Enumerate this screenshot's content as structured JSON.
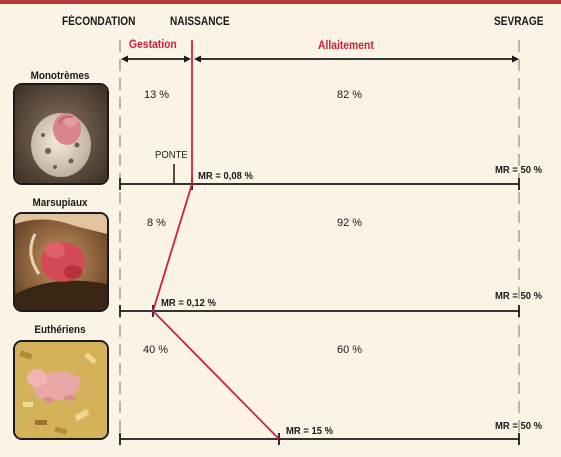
{
  "header": {
    "fecondation": "FÉCONDATION",
    "naissance": "NAISSANCE",
    "sevrage": "SEVRAGE"
  },
  "periods": {
    "gestation": "Gestation",
    "allaitement": "Allaitement"
  },
  "groups": [
    {
      "name": "Monotrèmes",
      "gestation_pct": "13 %",
      "allaitement_pct": "82 %",
      "mr_birth": "MR = 0,08 %",
      "mr_weaning": "MR = 50 %",
      "ponte_label": "PONTE",
      "photo_icon": "egg-hatchling-photo"
    },
    {
      "name": "Marsupiaux",
      "gestation_pct": "8 %",
      "allaitement_pct": "92 %",
      "mr_birth": "MR = 0,12 %",
      "mr_weaning": "MR = 50 %",
      "photo_icon": "pouch-joey-photo"
    },
    {
      "name": "Euthériens",
      "gestation_pct": "40 %",
      "allaitement_pct": "60 %",
      "mr_birth": "MR = 15 %",
      "mr_weaning": "MR = 50 %",
      "photo_icon": "newborn-rodent-photo"
    }
  ],
  "colors": {
    "accent_red": "#d1213a",
    "background": "#fbf3e5",
    "line": "#1a1a1a"
  }
}
